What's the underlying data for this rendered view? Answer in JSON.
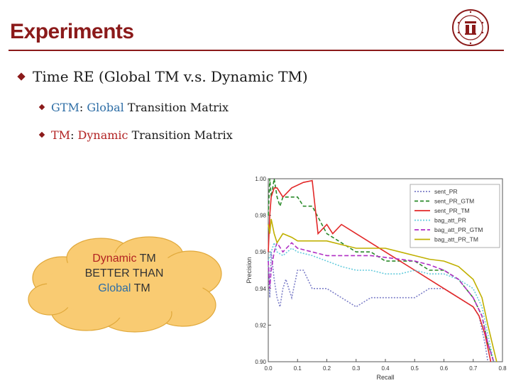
{
  "slide": {
    "title": "Experiments",
    "bullet1": "Time RE (Global TM v.s. Dynamic TM)",
    "bullet2": {
      "abbr": "GTM",
      "sep": ": ",
      "highlight": "Global",
      "rest": " Transition Matrix"
    },
    "bullet3": {
      "abbr": "TM",
      "sep": ": ",
      "highlight": "Dynamic",
      "rest": " Transition Matrix"
    },
    "callout": {
      "line1": "Dynamic",
      "line1b": " TM",
      "line2": "BETTER THAN",
      "line3": "Global",
      "line3b": " TM"
    }
  },
  "colors": {
    "accent": "#8b1a1a",
    "highlight_blue": "#2e6ea6",
    "highlight_red": "#b22222",
    "cloud_fill": "#f9cb72"
  },
  "chart_data": {
    "type": "line",
    "xlabel": "Recall",
    "ylabel": "Precision",
    "xlim": [
      0.0,
      0.8
    ],
    "ylim": [
      0.9,
      1.0
    ],
    "xticks": [
      "0.0",
      "0.1",
      "0.2",
      "0.3",
      "0.4",
      "0.5",
      "0.6",
      "0.7",
      "0.8"
    ],
    "yticks": [
      "0.90",
      "0.92",
      "0.94",
      "0.96",
      "0.98",
      "1.00"
    ],
    "legend_position": "top-right",
    "series": [
      {
        "name": "sent_PR",
        "color": "#7d7fc8",
        "dash": "2,2",
        "x": [
          0.0,
          0.005,
          0.01,
          0.02,
          0.03,
          0.04,
          0.05,
          0.06,
          0.08,
          0.1,
          0.12,
          0.15,
          0.2,
          0.25,
          0.3,
          0.35,
          0.4,
          0.45,
          0.5,
          0.55,
          0.6,
          0.65,
          0.7,
          0.72,
          0.74,
          0.75
        ],
        "y": [
          0.955,
          0.935,
          0.96,
          0.945,
          0.935,
          0.93,
          0.94,
          0.945,
          0.935,
          0.95,
          0.95,
          0.94,
          0.94,
          0.935,
          0.93,
          0.935,
          0.935,
          0.935,
          0.935,
          0.94,
          0.94,
          0.935,
          0.93,
          0.925,
          0.91,
          0.9
        ]
      },
      {
        "name": "sent_PR_GTM",
        "color": "#2a8a2a",
        "dash": "5,3",
        "x": [
          0.0,
          0.005,
          0.01,
          0.02,
          0.03,
          0.04,
          0.05,
          0.08,
          0.1,
          0.12,
          0.15,
          0.2,
          0.25,
          0.3,
          0.35,
          0.4,
          0.45,
          0.5,
          0.55,
          0.6,
          0.65,
          0.7,
          0.73,
          0.75,
          0.77
        ],
        "y": [
          0.98,
          1.0,
          0.99,
          1.0,
          0.99,
          0.985,
          0.99,
          0.99,
          0.99,
          0.985,
          0.985,
          0.97,
          0.965,
          0.96,
          0.96,
          0.955,
          0.955,
          0.955,
          0.95,
          0.95,
          0.945,
          0.935,
          0.925,
          0.91,
          0.9
        ]
      },
      {
        "name": "sent_PR_TM",
        "color": "#e22828",
        "dash": "",
        "x": [
          0.0,
          0.005,
          0.01,
          0.02,
          0.03,
          0.05,
          0.08,
          0.12,
          0.15,
          0.17,
          0.2,
          0.22,
          0.25,
          0.3,
          0.35,
          0.4,
          0.45,
          0.5,
          0.55,
          0.6,
          0.65,
          0.7,
          0.72,
          0.74,
          0.76
        ],
        "y": [
          0.96,
          0.98,
          0.99,
          0.995,
          0.995,
          0.99,
          0.995,
          0.998,
          0.999,
          0.97,
          0.975,
          0.97,
          0.975,
          0.97,
          0.965,
          0.96,
          0.955,
          0.95,
          0.945,
          0.94,
          0.935,
          0.93,
          0.925,
          0.915,
          0.9
        ]
      },
      {
        "name": "bag_att_PR",
        "color": "#66ccdd",
        "dash": "2,2",
        "x": [
          0.0,
          0.01,
          0.02,
          0.03,
          0.05,
          0.08,
          0.1,
          0.15,
          0.2,
          0.25,
          0.3,
          0.35,
          0.4,
          0.45,
          0.5,
          0.55,
          0.6,
          0.65,
          0.7,
          0.73,
          0.75,
          0.77
        ],
        "y": [
          0.955,
          0.96,
          0.965,
          0.96,
          0.958,
          0.962,
          0.96,
          0.958,
          0.955,
          0.952,
          0.95,
          0.95,
          0.948,
          0.948,
          0.95,
          0.948,
          0.948,
          0.945,
          0.94,
          0.93,
          0.915,
          0.9
        ]
      },
      {
        "name": "bag_att_PR_GTM",
        "color": "#b02fc4",
        "dash": "6,3",
        "x": [
          0.0,
          0.005,
          0.01,
          0.02,
          0.03,
          0.05,
          0.08,
          0.1,
          0.15,
          0.2,
          0.25,
          0.3,
          0.35,
          0.4,
          0.45,
          0.5,
          0.55,
          0.6,
          0.65,
          0.7,
          0.73,
          0.75,
          0.77
        ],
        "y": [
          0.955,
          0.94,
          0.95,
          0.96,
          0.965,
          0.96,
          0.965,
          0.962,
          0.96,
          0.958,
          0.958,
          0.958,
          0.958,
          0.957,
          0.956,
          0.955,
          0.953,
          0.95,
          0.945,
          0.935,
          0.925,
          0.91,
          0.9
        ]
      },
      {
        "name": "bag_att_PR_TM",
        "color": "#c0b000",
        "dash": "",
        "x": [
          0.0,
          0.005,
          0.01,
          0.02,
          0.03,
          0.05,
          0.08,
          0.1,
          0.15,
          0.2,
          0.25,
          0.3,
          0.35,
          0.4,
          0.45,
          0.5,
          0.55,
          0.6,
          0.65,
          0.7,
          0.73,
          0.75,
          0.78
        ],
        "y": [
          0.975,
          0.97,
          0.978,
          0.97,
          0.965,
          0.97,
          0.968,
          0.966,
          0.966,
          0.966,
          0.964,
          0.962,
          0.962,
          0.962,
          0.96,
          0.958,
          0.956,
          0.955,
          0.952,
          0.945,
          0.935,
          0.92,
          0.9
        ]
      }
    ]
  }
}
